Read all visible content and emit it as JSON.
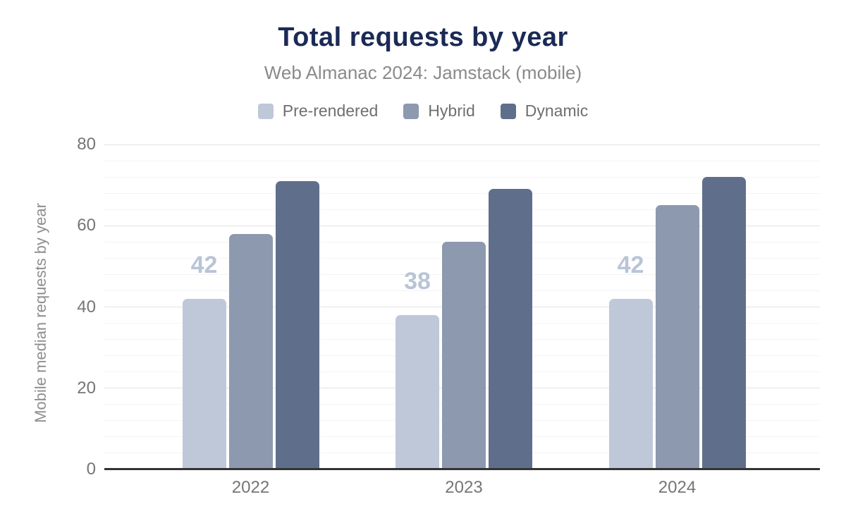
{
  "chart_data": {
    "type": "bar",
    "title": "Total requests by year",
    "subtitle": "Web Almanac 2024: Jamstack (mobile)",
    "categories": [
      "2022",
      "2023",
      "2024"
    ],
    "series": [
      {
        "name": "Pre-rendered",
        "color": "#bec8d8",
        "values": [
          42,
          38,
          42
        ],
        "data_labels": [
          "42",
          "38",
          "42"
        ]
      },
      {
        "name": "Hybrid",
        "color": "#8d99af",
        "values": [
          58,
          56,
          65
        ]
      },
      {
        "name": "Dynamic",
        "color": "#5f6f8b",
        "values": [
          71,
          69,
          72
        ]
      }
    ],
    "xlabel": "",
    "ylabel": "Mobile median requests by year",
    "ylim": [
      0,
      80
    ],
    "yticks": [
      0,
      20,
      40,
      60,
      80
    ],
    "minor_grid_step": 4,
    "grid": true,
    "legend_position": "top"
  },
  "colors": {
    "title": "#1b2a55",
    "subtitle": "#8a8a8a",
    "axis_text": "#757575",
    "axis_line": "#333333",
    "major_grid": "#e2e2e2",
    "minor_grid": "#f4f4f4",
    "data_label": "#b9c4d7",
    "background": "#ffffff"
  }
}
